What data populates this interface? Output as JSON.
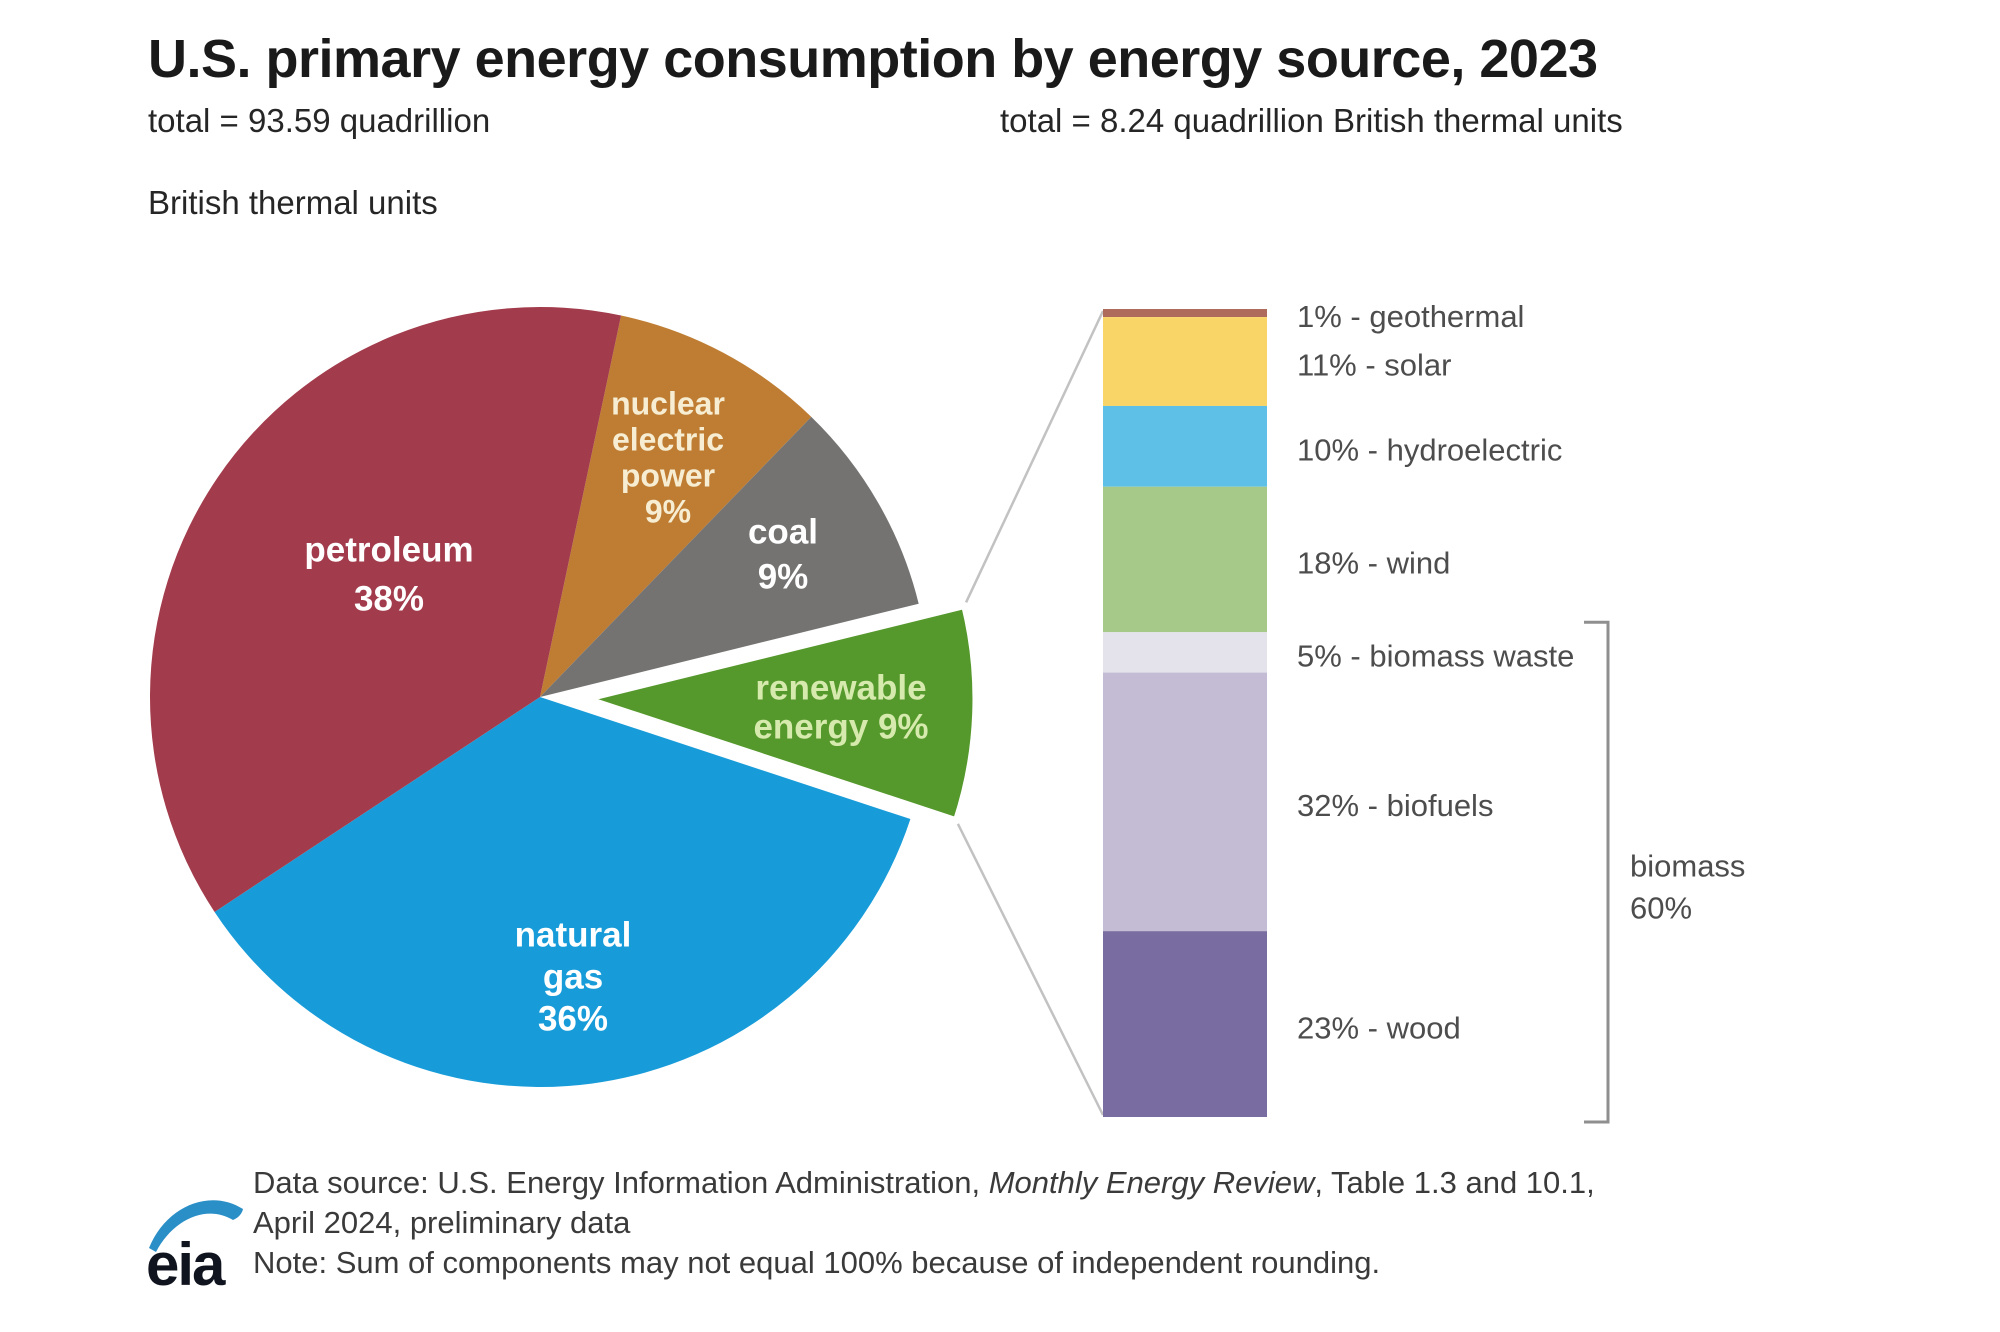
{
  "title": "U.S. primary energy consumption by energy source, 2023",
  "pie_subtitle": {
    "line1": "total = 93.59 quadrillion",
    "line2": "British thermal units"
  },
  "bar_subtitle": "total = 8.24 quadrillion British thermal units",
  "chart_data": [
    {
      "type": "pie",
      "title": "U.S. primary energy consumption by energy source, 2023",
      "total_label": "total = 93.59 quadrillion British thermal units",
      "total_quadrillion_btu": 93.59,
      "unit": "percent of total",
      "start_angle_deg": 12,
      "direction": "clockwise",
      "slices": [
        {
          "label": "nuclear electric power",
          "pct": 9,
          "display": "9%",
          "color": "#BF7D33",
          "exploded": false,
          "label_lines": [
            "nuclear",
            "electric",
            "power",
            "9%"
          ]
        },
        {
          "label": "coal",
          "pct": 9,
          "display": "9%",
          "color": "#747372",
          "exploded": false,
          "label_lines": [
            "coal",
            "9%"
          ]
        },
        {
          "label": "renewable energy",
          "pct": 9,
          "display": "9%",
          "color": "#55982B",
          "exploded": true,
          "label_lines": [
            "renewable",
            "energy 9%"
          ]
        },
        {
          "label": "natural gas",
          "pct": 36,
          "display": "36%",
          "color": "#189CD9",
          "exploded": false,
          "label_lines": [
            "natural",
            "gas",
            "36%"
          ]
        },
        {
          "label": "petroleum",
          "pct": 38,
          "display": "38%",
          "color": "#A23B4B",
          "exploded": false,
          "label_lines": [
            "petroleum",
            "38%"
          ]
        }
      ]
    },
    {
      "type": "bar",
      "subtype": "stacked-column",
      "title": "renewable energy breakdown",
      "total_label": "total = 8.24 quadrillion British thermal units",
      "total_quadrillion_btu": 8.24,
      "unit": "percent of renewable total",
      "segments": [
        {
          "label": "geothermal",
          "pct": 1,
          "display": "1% - geothermal",
          "color": "#AE6B5B"
        },
        {
          "label": "solar",
          "pct": 11,
          "display": "11% - solar",
          "color": "#F8D566"
        },
        {
          "label": "hydroelectric",
          "pct": 10,
          "display": "10% - hydroelectric",
          "color": "#5FC0E7"
        },
        {
          "label": "wind",
          "pct": 18,
          "display": "18% - wind",
          "color": "#A6C888"
        },
        {
          "label": "biomass waste",
          "pct": 5,
          "display": "5% - biomass waste",
          "color": "#E4E2EA"
        },
        {
          "label": "biofuels",
          "pct": 32,
          "display": "32% - biofuels",
          "color": "#C3BCD4"
        },
        {
          "label": "wood",
          "pct": 23,
          "display": "23% - wood",
          "color": "#796CA0"
        }
      ],
      "group_bracket": {
        "label_lines": [
          "biomass",
          "60%"
        ],
        "pct": 60,
        "members": [
          "biomass waste",
          "biofuels",
          "wood"
        ]
      }
    }
  ],
  "footer": {
    "line1_pre": "Data source: U.S. Energy Information Administration, ",
    "line1_italic": "Monthly Energy Review",
    "line1_post": ", Table 1.3 and 10.1,",
    "line2": "April 2024, preliminary data",
    "note": "Note: Sum of components may not equal 100% because of independent rounding."
  },
  "logo_text": "eia",
  "colors": {
    "background": "#ffffff",
    "connector_line": "#C2C2C2",
    "bracket": "#8F8F8F",
    "bar_label_text": "#4D4D4D",
    "logo_swoosh": "#2B8FC7",
    "logo_text": "#10141F"
  }
}
